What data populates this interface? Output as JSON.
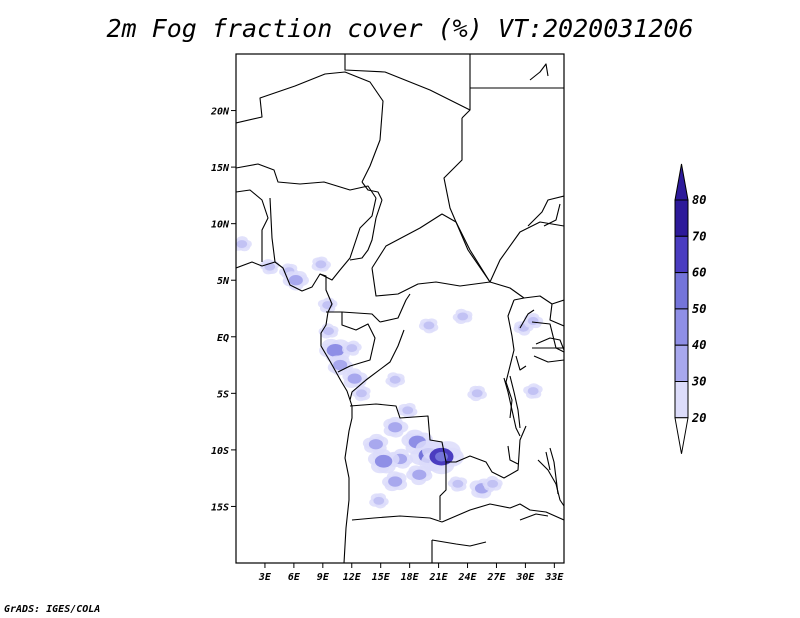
{
  "title": "2m Fog fraction cover (%) VT:2020031206",
  "credit": "GrADS: IGES/COLA",
  "map": {
    "lon_range": [
      0,
      34
    ],
    "lat_range": [
      -20,
      25
    ],
    "lat_ticks": [
      {
        "value": 20,
        "label": "20N"
      },
      {
        "value": 15,
        "label": "15N"
      },
      {
        "value": 10,
        "label": "10N"
      },
      {
        "value": 5,
        "label": "5N"
      },
      {
        "value": 0,
        "label": "EQ"
      },
      {
        "value": -5,
        "label": "5S"
      },
      {
        "value": -10,
        "label": "10S"
      },
      {
        "value": -15,
        "label": "15S"
      }
    ],
    "lon_ticks": [
      {
        "value": 3,
        "label": "3E"
      },
      {
        "value": 6,
        "label": "6E"
      },
      {
        "value": 9,
        "label": "9E"
      },
      {
        "value": 12,
        "label": "12E"
      },
      {
        "value": 15,
        "label": "15E"
      },
      {
        "value": 18,
        "label": "18E"
      },
      {
        "value": 21,
        "label": "21E"
      },
      {
        "value": 24,
        "label": "24E"
      },
      {
        "value": 27,
        "label": "27E"
      },
      {
        "value": 30,
        "label": "30E"
      },
      {
        "value": 33,
        "label": "33E"
      }
    ]
  },
  "colorbar": {
    "levels": [
      "20",
      "30",
      "40",
      "50",
      "60",
      "70",
      "80"
    ],
    "colors": [
      "#dcdcfa",
      "#c2c2f4",
      "#a8a8ee",
      "#8f8fe6",
      "#7474da",
      "#4a3cc0",
      "#2d1a9a"
    ]
  },
  "fog_patches": [
    {
      "lon": 0.6,
      "lat": 8.2,
      "level": 1
    },
    {
      "lon": 3.5,
      "lat": 6.2,
      "level": 1
    },
    {
      "lon": 5.5,
      "lat": 5.8,
      "level": 1
    },
    {
      "lon": 6.2,
      "lat": 5.0,
      "level": 2
    },
    {
      "lon": 8.8,
      "lat": 6.4,
      "level": 1
    },
    {
      "lon": 9.5,
      "lat": 2.8,
      "level": 1
    },
    {
      "lon": 9.6,
      "lat": 0.5,
      "level": 1
    },
    {
      "lon": 10.3,
      "lat": -1.2,
      "level": 3
    },
    {
      "lon": 10.8,
      "lat": -2.5,
      "level": 2
    },
    {
      "lon": 12.0,
      "lat": -1.0,
      "level": 1
    },
    {
      "lon": 12.3,
      "lat": -3.7,
      "level": 2
    },
    {
      "lon": 13.0,
      "lat": -5.0,
      "level": 1
    },
    {
      "lon": 16.5,
      "lat": -3.8,
      "level": 1
    },
    {
      "lon": 17.8,
      "lat": -6.5,
      "level": 1
    },
    {
      "lon": 16.5,
      "lat": -8.0,
      "level": 2
    },
    {
      "lon": 14.5,
      "lat": -9.5,
      "level": 2
    },
    {
      "lon": 18.8,
      "lat": -9.3,
      "level": 3
    },
    {
      "lon": 20.0,
      "lat": -10.5,
      "level": 4
    },
    {
      "lon": 21.3,
      "lat": -10.6,
      "level": 5
    },
    {
      "lon": 17.0,
      "lat": -10.8,
      "level": 2
    },
    {
      "lon": 15.3,
      "lat": -11.0,
      "level": 3
    },
    {
      "lon": 16.5,
      "lat": -12.8,
      "level": 2
    },
    {
      "lon": 19.0,
      "lat": -12.2,
      "level": 2
    },
    {
      "lon": 14.8,
      "lat": -14.5,
      "level": 1
    },
    {
      "lon": 25.5,
      "lat": -13.4,
      "level": 2
    },
    {
      "lon": 26.6,
      "lat": -13.0,
      "level": 1
    },
    {
      "lon": 23.0,
      "lat": -13.0,
      "level": 1
    },
    {
      "lon": 25.0,
      "lat": -5.0,
      "level": 1
    },
    {
      "lon": 29.8,
      "lat": 0.8,
      "level": 1
    },
    {
      "lon": 30.8,
      "lat": 1.4,
      "level": 1
    },
    {
      "lon": 30.8,
      "lat": -4.8,
      "level": 1
    },
    {
      "lon": 23.5,
      "lat": 1.8,
      "level": 1
    },
    {
      "lon": 20.0,
      "lat": 1.0,
      "level": 1
    }
  ]
}
